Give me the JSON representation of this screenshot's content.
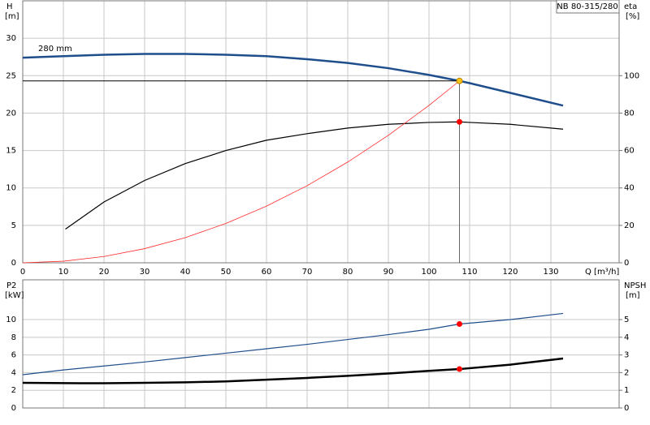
{
  "chart_data": [
    {
      "type": "line",
      "title": "NB 80-315/280",
      "x_label": "Q [m³/h]",
      "y_label": "H",
      "y_unit": "[m]",
      "y2_label": "eta",
      "y2_unit": "[%]",
      "xlim": [
        0,
        146.8
      ],
      "xticks": [
        0,
        10,
        20,
        30,
        40,
        50,
        60,
        70,
        80,
        90,
        100,
        110,
        120,
        130
      ],
      "ylim": [
        0,
        35
      ],
      "yticks": [
        0,
        5,
        10,
        15,
        20,
        25,
        30
      ],
      "y2lim": [
        0,
        140
      ],
      "y2ticks": [
        0,
        20,
        40,
        60,
        80,
        100
      ],
      "grid": true,
      "series": [
        {
          "name": "280 mm",
          "color": "#1f4e8c",
          "line_width": 2.5,
          "x": [
            0,
            10,
            20,
            30,
            40,
            50,
            60,
            70,
            80,
            90,
            100,
            107.5,
            110,
            120,
            133
          ],
          "values": [
            27.4,
            27.6,
            27.8,
            27.9,
            27.9,
            27.8,
            27.6,
            27.2,
            26.7,
            26.0,
            25.1,
            24.3,
            24.0,
            22.7,
            21.0
          ]
        },
        {
          "color": "#000000",
          "line_width": 1.2,
          "axis": "y2",
          "x": [
            10.5,
            20,
            30,
            40,
            50,
            60,
            70,
            80,
            90,
            100,
            107.5,
            110,
            120,
            133
          ],
          "values": [
            18,
            32.5,
            44,
            53,
            60,
            65.5,
            69,
            72,
            74,
            75,
            75.3,
            75,
            74,
            71.4
          ]
        },
        {
          "color": "#ff2a2a",
          "line_width": 0.8,
          "x": [
            0,
            10,
            20,
            30,
            40,
            50,
            60,
            70,
            80,
            90,
            100,
            107.5
          ],
          "values": [
            0,
            0.21,
            0.84,
            1.89,
            3.36,
            5.26,
            7.57,
            10.3,
            13.46,
            17.03,
            21.03,
            24.3
          ]
        },
        {
          "color": "#000000",
          "line_width": 1,
          "x": [
            0,
            107.5
          ],
          "values": [
            24.3,
            24.3
          ]
        },
        {
          "color": "#666666",
          "line_width": 1,
          "x": [
            107.5,
            107.5
          ],
          "values": [
            24.3,
            0
          ]
        },
        {
          "color": "#f5c518",
          "marker": true,
          "x": [
            107.5
          ],
          "values": [
            24.3
          ]
        },
        {
          "color": "#ff0000",
          "marker": true,
          "axis": "y2",
          "x": [
            107.5
          ],
          "values": [
            75.3
          ]
        }
      ]
    },
    {
      "type": "line",
      "y_label": "P2",
      "y_unit": "[kW]",
      "y2_label": "NPSH",
      "y2_unit": "[m]",
      "xlim": [
        0,
        146.8
      ],
      "ylim": [
        0,
        14.5
      ],
      "yticks": [
        0,
        2,
        4,
        6,
        8,
        10
      ],
      "y2lim": [
        0,
        7.25
      ],
      "y2ticks": [
        0,
        1,
        2,
        3,
        4,
        5
      ],
      "grid": true,
      "series": [
        {
          "color": "#1f4e8c",
          "line_width": 1.2,
          "x": [
            0,
            10,
            20,
            30,
            40,
            50,
            60,
            70,
            80,
            90,
            100,
            107.5,
            120,
            133
          ],
          "values": [
            3.76,
            4.3,
            4.75,
            5.2,
            5.7,
            6.2,
            6.7,
            7.2,
            7.75,
            8.3,
            8.9,
            9.5,
            10.0,
            10.7
          ]
        },
        {
          "color": "#000000",
          "line_width": 2.5,
          "axis": "y2",
          "x": [
            0,
            14,
            20,
            30,
            40,
            50,
            60,
            70,
            80,
            90,
            100,
            107.5,
            120,
            133
          ],
          "values": [
            1.42,
            1.4,
            1.4,
            1.42,
            1.45,
            1.5,
            1.6,
            1.7,
            1.82,
            1.95,
            2.1,
            2.2,
            2.45,
            2.8
          ]
        },
        {
          "color": "#ff0000",
          "marker": true,
          "x": [
            107.5
          ],
          "values": [
            9.5
          ]
        },
        {
          "color": "#ff0000",
          "marker": true,
          "axis": "y2",
          "x": [
            107.5
          ],
          "values": [
            2.2
          ]
        }
      ]
    }
  ]
}
